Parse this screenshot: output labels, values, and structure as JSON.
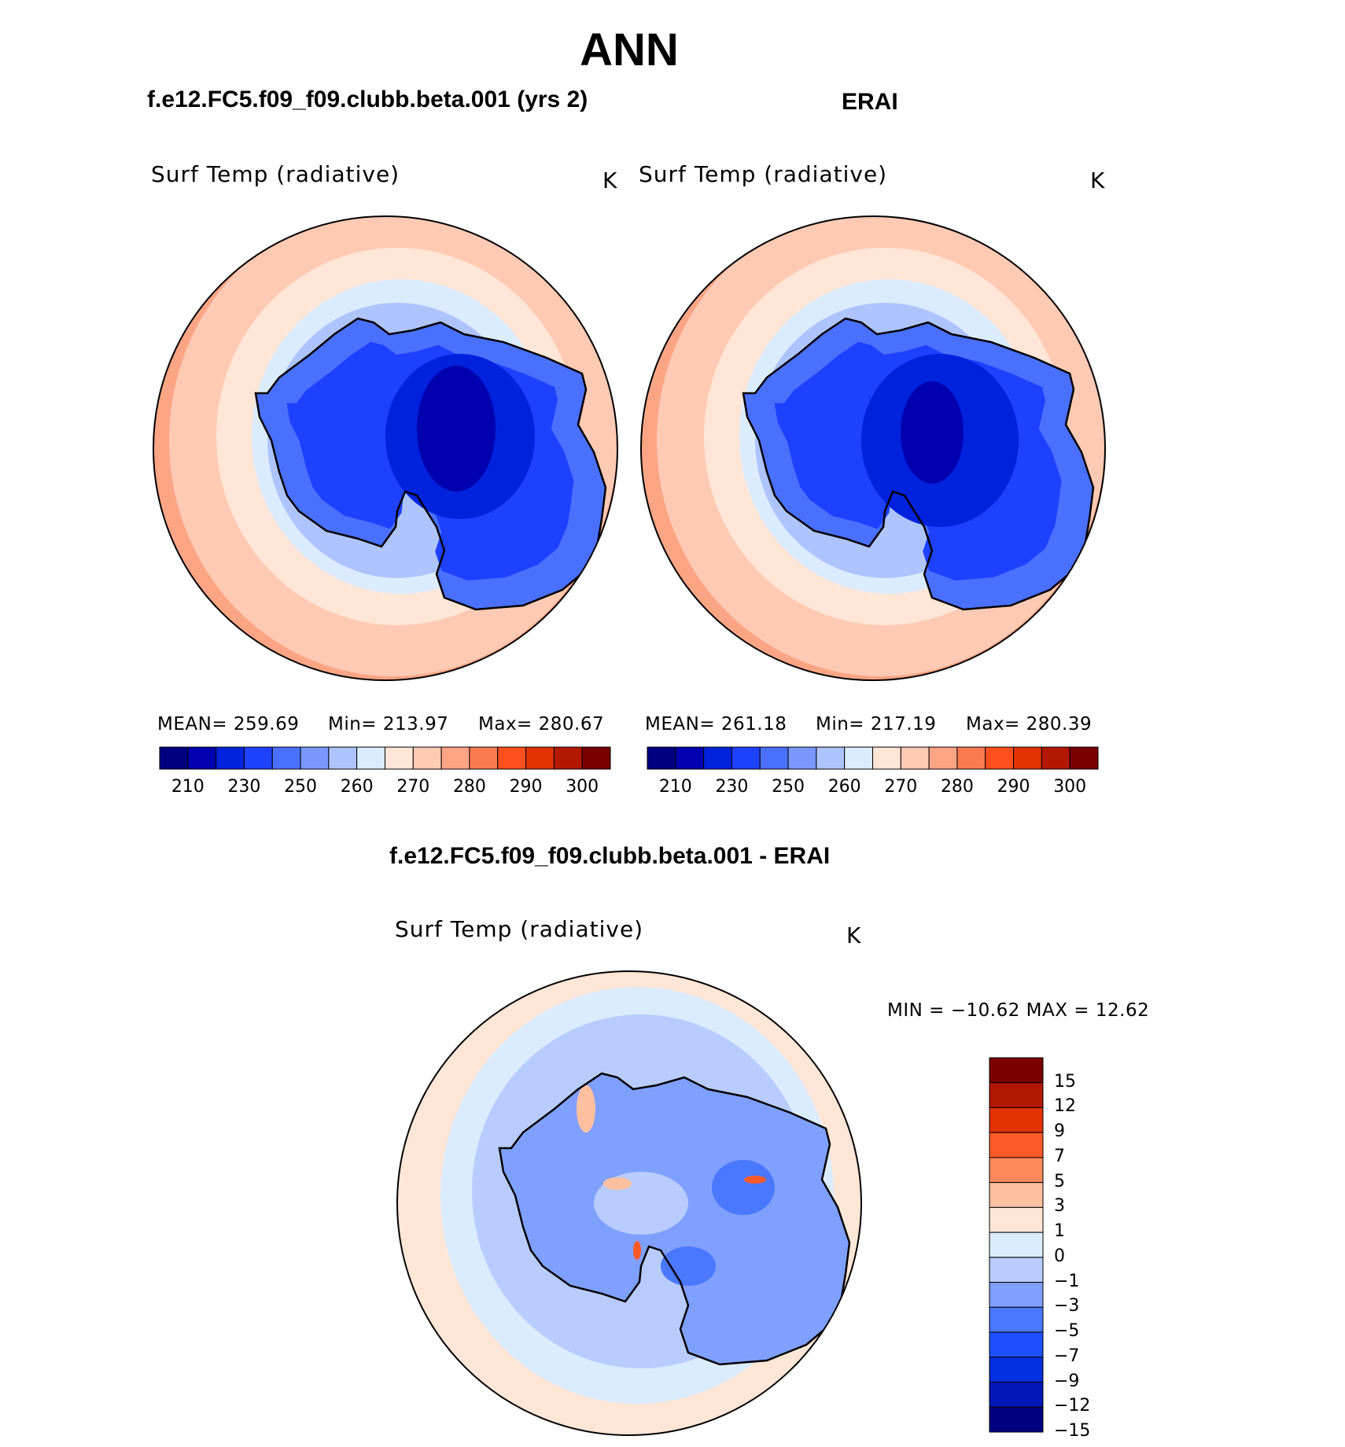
{
  "figure": {
    "season": "ANN"
  },
  "panels": [
    {
      "case": "f.e12.FC5.f09_f09.clubb.beta.001 (yrs 2)",
      "variable": "Surf Temp (radiative)",
      "unit": "K",
      "stats": {
        "mean": "MEAN=  259.69",
        "min": "Min=  213.97",
        "max": "Max=  280.67"
      }
    },
    {
      "case": "ERAI",
      "variable": "Surf Temp (radiative)",
      "unit": "K",
      "stats": {
        "mean": "MEAN=  261.18",
        "min": "Min=  217.19",
        "max": "Max=  280.39"
      }
    },
    {
      "case": "f.e12.FC5.f09_f09.clubb.beta.001 - ERAI",
      "variable": "Surf Temp (radiative)",
      "unit": "K",
      "stats": {
        "minmax": "MIN  =  −10.62  MAX  =    12.62"
      }
    }
  ],
  "colorbars": {
    "absolute": {
      "colors": [
        "#000080",
        "#0000b0",
        "#0022dd",
        "#1e40ff",
        "#4a70ff",
        "#7a98ff",
        "#aec4ff",
        "#dcecff",
        "#ffe6d6",
        "#ffcab4",
        "#fca585",
        "#fb7b4f",
        "#ff4f1f",
        "#e23300",
        "#b21800",
        "#7a0000"
      ],
      "labels": [
        "210",
        "230",
        "250",
        "260",
        "270",
        "280",
        "290",
        "300"
      ]
    },
    "difference": {
      "colors": [
        "#000080",
        "#0018b8",
        "#0030e0",
        "#1e50ff",
        "#4a78ff",
        "#80a0ff",
        "#b8ccff",
        "#dcecff",
        "#ffe6d6",
        "#ffc0a0",
        "#fc8a5a",
        "#ff5a28",
        "#e23300",
        "#b21800",
        "#7a0000"
      ],
      "labels": [
        "15",
        "12",
        "9",
        "7",
        "5",
        "3",
        "1",
        "0",
        "−1",
        "−3",
        "−5",
        "−7",
        "−9",
        "−12",
        "−15"
      ]
    }
  }
}
